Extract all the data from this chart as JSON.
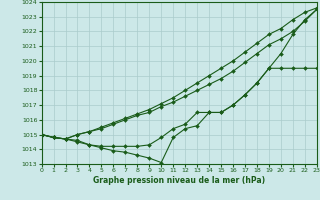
{
  "xlabel": "Graphe pression niveau de la mer (hPa)",
  "ylim": [
    1013,
    1024
  ],
  "xlim": [
    0,
    23
  ],
  "yticks": [
    1013,
    1014,
    1015,
    1016,
    1017,
    1018,
    1019,
    1020,
    1021,
    1022,
    1023,
    1024
  ],
  "xticks": [
    0,
    1,
    2,
    3,
    4,
    5,
    6,
    7,
    8,
    9,
    10,
    11,
    12,
    13,
    14,
    15,
    16,
    17,
    18,
    19,
    20,
    21,
    22,
    23
  ],
  "background_color": "#cce8e8",
  "grid_color": "#aacccc",
  "line_color": "#1a5c1a",
  "lines": [
    {
      "x": [
        0,
        1,
        2,
        3,
        4,
        5,
        6,
        7,
        8,
        9,
        10,
        11,
        12,
        13,
        14,
        15,
        16,
        17,
        18,
        19,
        20,
        21,
        22,
        23
      ],
      "y": [
        1015.0,
        1014.8,
        1014.7,
        1015.0,
        1015.2,
        1015.5,
        1015.8,
        1016.1,
        1016.4,
        1016.7,
        1017.1,
        1017.5,
        1018.0,
        1018.5,
        1019.0,
        1019.5,
        1020.0,
        1020.6,
        1021.2,
        1021.8,
        1022.2,
        1022.8,
        1023.3,
        1023.6
      ],
      "marker": "D",
      "markersize": 2.0
    },
    {
      "x": [
        0,
        1,
        2,
        3,
        4,
        5,
        6,
        7,
        8,
        9,
        10,
        11,
        12,
        13,
        14,
        15,
        16,
        17,
        18,
        19,
        20,
        21,
        22,
        23
      ],
      "y": [
        1015.0,
        1014.8,
        1014.7,
        1015.0,
        1015.2,
        1015.4,
        1015.7,
        1016.0,
        1016.3,
        1016.5,
        1016.9,
        1017.2,
        1017.6,
        1018.0,
        1018.4,
        1018.8,
        1019.3,
        1019.9,
        1020.5,
        1021.1,
        1021.5,
        1022.0,
        1022.7,
        1023.5
      ],
      "marker": "D",
      "markersize": 2.0
    },
    {
      "x": [
        0,
        1,
        2,
        3,
        4,
        5,
        6,
        7,
        8,
        9,
        10,
        11,
        12,
        13,
        14,
        15,
        16,
        17,
        18,
        19,
        20,
        21,
        22,
        23
      ],
      "y": [
        1015.0,
        1014.8,
        1014.7,
        1014.6,
        1014.3,
        1014.2,
        1014.2,
        1014.2,
        1014.2,
        1014.3,
        1014.8,
        1015.4,
        1015.7,
        1016.5,
        1016.5,
        1016.5,
        1017.0,
        1017.7,
        1018.5,
        1019.5,
        1019.5,
        1019.5,
        1019.5,
        1019.5
      ],
      "marker": "D",
      "markersize": 2.0
    },
    {
      "x": [
        0,
        1,
        2,
        3,
        4,
        5,
        6,
        7,
        8,
        9,
        10,
        11,
        12,
        13,
        14,
        15,
        16,
        17,
        18,
        19,
        20,
        21,
        22,
        23
      ],
      "y": [
        1015.0,
        1014.8,
        1014.7,
        1014.5,
        1014.3,
        1014.1,
        1013.9,
        1013.8,
        1013.6,
        1013.4,
        1013.1,
        1014.8,
        1015.4,
        1015.6,
        1016.5,
        1016.5,
        1017.0,
        1017.7,
        1018.5,
        1019.5,
        1020.5,
        1021.8,
        1022.8,
        1023.5
      ],
      "marker": "D",
      "markersize": 2.0
    }
  ]
}
